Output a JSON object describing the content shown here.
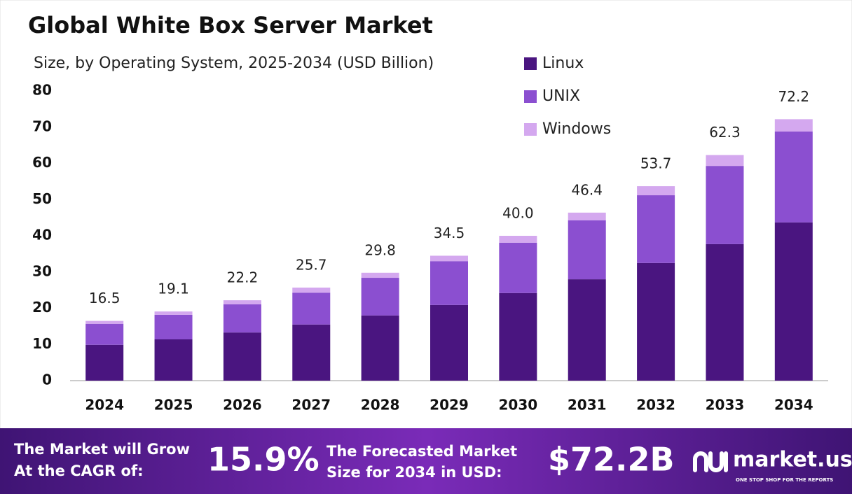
{
  "chart_data": {
    "type": "stacked_bar",
    "title": "Global White Box Server Market",
    "subtitle": "Size, by Operating System, 2025-2034 (USD Billion)",
    "categories": [
      "2024",
      "2025",
      "2026",
      "2027",
      "2028",
      "2029",
      "2030",
      "2031",
      "2032",
      "2033",
      "2034"
    ],
    "series": [
      {
        "name": "Linux",
        "color": "#4a1580",
        "values": [
          9.9,
          11.4,
          13.3,
          15.5,
          18.0,
          20.9,
          24.2,
          28.0,
          32.5,
          37.7,
          43.7
        ]
      },
      {
        "name": "UNIX",
        "color": "#8b4fd0",
        "values": [
          5.8,
          6.8,
          7.8,
          8.8,
          10.4,
          12.1,
          13.9,
          16.3,
          18.7,
          21.6,
          25.1
        ]
      },
      {
        "name": "Windows",
        "color": "#d4a8ef",
        "values": [
          0.8,
          0.9,
          1.1,
          1.4,
          1.4,
          1.5,
          1.9,
          2.1,
          2.5,
          3.0,
          3.4
        ]
      }
    ],
    "totals": [
      16.5,
      19.1,
      22.2,
      25.7,
      29.8,
      34.5,
      40,
      46.4,
      53.7,
      62.3,
      72.2
    ],
    "total_labels": [
      "16.5",
      "19.1",
      "22.2",
      "25.7",
      "29.8",
      "34.5",
      "40.0",
      "46.4",
      "53.7",
      "62.3",
      "72.2"
    ],
    "ylim": [
      0,
      80
    ],
    "yticks": [
      0,
      10,
      20,
      30,
      40,
      50,
      60,
      70,
      80
    ],
    "grid": false,
    "legend": "top-right"
  },
  "footer": {
    "grow_line1": "The Market will Grow",
    "grow_line2": "At the CAGR of:",
    "cagr": "15.9%",
    "forecast_line1": "The Forecasted Market",
    "forecast_line2": "Size for 2034 in USD:",
    "forecast_value": "$72.2B",
    "brand": "market.us",
    "tagline": "ONE STOP SHOP FOR THE REPORTS"
  }
}
